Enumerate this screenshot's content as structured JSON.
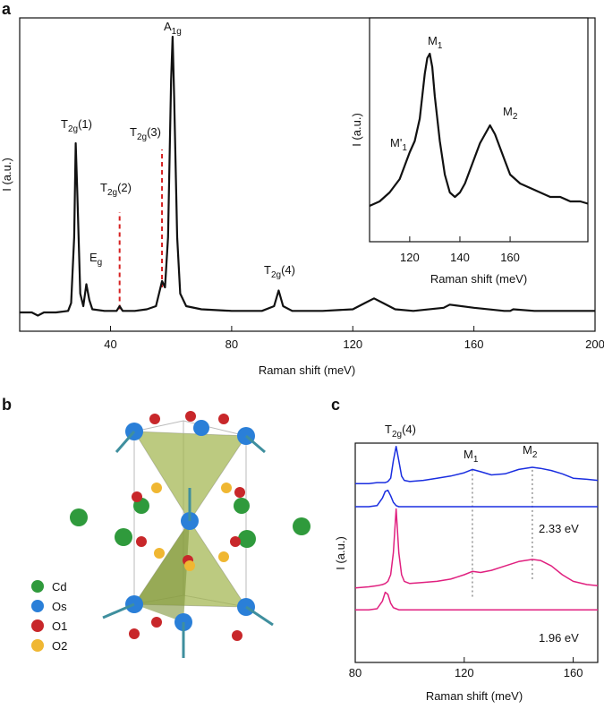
{
  "panel_labels": [
    "a",
    "b",
    "c"
  ],
  "panel_b": {
    "legend": [
      {
        "label": "Cd",
        "color": "#2f9a3c"
      },
      {
        "label": "Os",
        "color": "#2a7fd8"
      },
      {
        "label": "O1",
        "color": "#c8272a"
      },
      {
        "label": "O2",
        "color": "#f0b732"
      }
    ]
  },
  "chart_data": [
    {
      "type": "line",
      "x_label": "Raman shift (meV)",
      "y_label": "I (a.u.)",
      "xlim": [
        10,
        200
      ],
      "ylim": [
        0,
        100
      ],
      "xticks": [
        40,
        80,
        120,
        160,
        200
      ],
      "x": [
        10,
        14,
        16,
        18,
        22,
        26,
        27,
        28,
        28.5,
        29,
        30,
        31,
        32,
        33,
        34,
        38,
        42,
        43,
        44,
        48,
        52,
        55,
        56,
        57,
        58,
        59,
        60,
        60.5,
        61,
        62,
        63,
        65,
        70,
        80,
        90,
        94,
        95.5,
        97,
        100,
        110,
        120,
        124,
        127,
        130,
        134,
        140,
        150,
        152,
        160,
        170,
        172,
        173,
        180,
        190,
        200
      ],
      "series": [
        {
          "color": "#111111",
          "values": [
            6,
            6,
            5,
            6,
            6,
            6.5,
            9,
            30,
            60,
            45,
            12,
            8,
            15,
            10,
            7,
            6.5,
            6.5,
            8,
            6.5,
            6.5,
            7,
            8,
            12,
            16,
            14,
            30,
            80,
            94,
            75,
            30,
            12,
            8,
            7,
            6.5,
            6.5,
            8,
            13,
            8,
            6.5,
            6.5,
            7,
            9,
            10.5,
            9,
            7,
            6.5,
            7.5,
            8.5,
            7.5,
            6.5,
            6.5,
            7,
            6.5,
            6.5,
            6.5
          ]
        }
      ],
      "reference_lines": [
        {
          "x": 43,
          "y": [
            7,
            38
          ],
          "color": "#d62020"
        },
        {
          "x": 57,
          "y": [
            14,
            58
          ],
          "color": "#d62020"
        }
      ],
      "annotations": [
        {
          "text": "T",
          "sub": "2g",
          "suffix": "(1)"
        },
        {
          "text": "E",
          "sub": "g"
        },
        {
          "text": "T",
          "sub": "2g",
          "suffix": "(2)"
        },
        {
          "text": "T",
          "sub": "2g",
          "suffix": "(3)"
        },
        {
          "text": "A",
          "sub": "1g"
        },
        {
          "text": "T",
          "sub": "2g",
          "suffix": "(4)"
        }
      ]
    },
    {
      "type": "line",
      "x_label": "Raman shift (meV)",
      "y_label": "I (a.u.)",
      "xlim": [
        104,
        191
      ],
      "ylim": [
        0,
        100
      ],
      "xticks": [
        120,
        140,
        160
      ],
      "x": [
        104,
        108,
        112,
        116,
        118,
        120,
        122,
        124,
        125,
        126,
        127,
        128,
        129,
        130,
        132,
        134,
        136,
        138,
        140,
        142,
        144,
        146,
        148,
        150,
        152,
        154,
        156,
        158,
        160,
        164,
        168,
        172,
        176,
        180,
        184,
        188,
        191
      ],
      "series": [
        {
          "color": "#111111",
          "values": [
            16,
            18,
            22,
            28,
            34,
            40,
            45,
            55,
            65,
            75,
            82,
            84,
            78,
            65,
            45,
            30,
            22,
            20,
            22,
            26,
            32,
            38,
            44,
            48,
            52,
            48,
            42,
            36,
            30,
            26,
            24,
            22,
            20,
            20,
            18,
            18,
            17
          ]
        }
      ],
      "annotations": [
        {
          "text": "M",
          "sub": "1"
        },
        {
          "text": "M",
          "sub": "2"
        },
        {
          "text": "M'",
          "sub": "1"
        }
      ]
    },
    {
      "type": "line",
      "x_label": "Raman shift (meV)",
      "y_label": "I (a.u.)",
      "xlim": [
        80,
        169
      ],
      "ylim": [
        0,
        100
      ],
      "xticks": [
        80,
        120,
        160
      ],
      "x": [
        80,
        85,
        88,
        90,
        91,
        92,
        93,
        94,
        95,
        96,
        97,
        98,
        100,
        105,
        110,
        115,
        120,
        123,
        126,
        130,
        135,
        140,
        145,
        148,
        152,
        156,
        160,
        165,
        169
      ],
      "series": [
        {
          "color": "#1a2ee0",
          "values": [
            81.5,
            81.5,
            82,
            82,
            82,
            82.5,
            84,
            92,
            98.5,
            92,
            85,
            83,
            82.5,
            83,
            84,
            85,
            86.5,
            88,
            87,
            85.5,
            86,
            88,
            89,
            88.5,
            87.5,
            86,
            84,
            83.5,
            83
          ]
        },
        {
          "color": "#1a2ee0",
          "values": [
            71,
            71,
            71.5,
            75,
            78,
            78.5,
            76,
            73,
            71.5,
            71,
            71,
            71,
            71,
            71,
            71,
            71,
            71,
            71,
            71,
            71,
            71,
            71,
            71,
            71,
            71,
            71,
            71,
            71,
            71
          ]
        },
        {
          "color": "#e0207f",
          "values": [
            34,
            34.5,
            35,
            35.5,
            36,
            37,
            40,
            50,
            70,
            50,
            40,
            37,
            36,
            36.5,
            37,
            38,
            40,
            41.5,
            41,
            42,
            44,
            46,
            47,
            46.5,
            44,
            40,
            37,
            35.5,
            35
          ]
        },
        {
          "color": "#e0207f",
          "values": [
            24,
            24,
            24.5,
            28,
            32,
            31,
            27,
            25,
            24.5,
            24,
            24,
            24,
            24,
            24,
            24,
            24,
            24,
            24,
            24,
            24,
            24,
            24,
            24,
            24,
            24,
            24,
            24,
            24,
            24
          ]
        }
      ],
      "reference_lines": [
        {
          "x": 123,
          "y": [
            30,
            88
          ],
          "color": "#777777"
        },
        {
          "x": 145,
          "y": [
            38,
            89
          ],
          "color": "#777777"
        }
      ],
      "annotations": [
        {
          "text": "T",
          "sub": "2g",
          "suffix": "(4)"
        },
        {
          "text": "M",
          "sub": "1"
        },
        {
          "text": "M",
          "sub": "2"
        },
        {
          "text": "2.33 eV"
        },
        {
          "text": "1.96 eV"
        }
      ]
    }
  ]
}
